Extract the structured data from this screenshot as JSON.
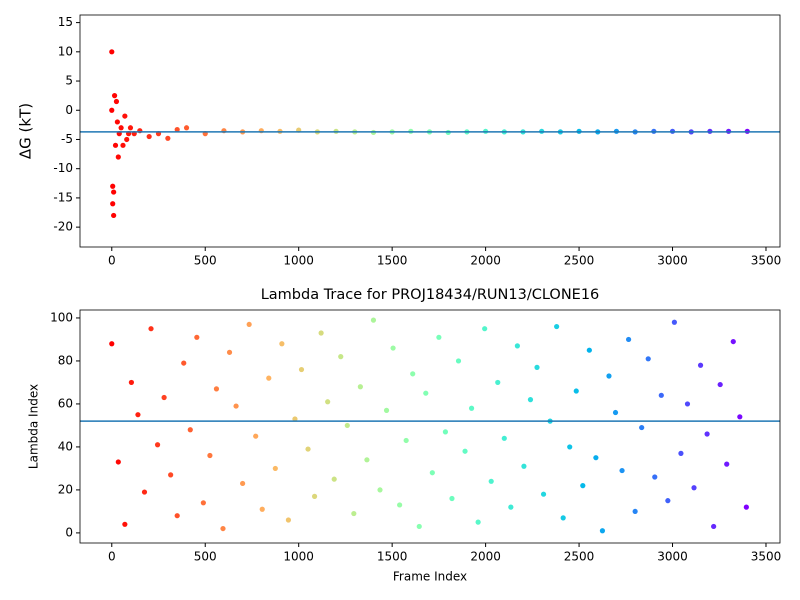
{
  "chart_data": [
    {
      "type": "scatter",
      "ylabel": "ΔG (kT)",
      "colormap": "rainbow_r",
      "x": [
        0,
        0,
        5,
        5,
        10,
        10,
        15,
        20,
        25,
        30,
        35,
        40,
        50,
        60,
        70,
        80,
        90,
        100,
        120,
        150,
        200,
        250,
        300,
        350,
        400,
        500,
        600,
        700,
        800,
        900,
        1000,
        1100,
        1200,
        1300,
        1400,
        1500,
        1600,
        1700,
        1800,
        1900,
        2000,
        2100,
        2200,
        2300,
        2400,
        2500,
        2600,
        2700,
        2800,
        2900,
        3000,
        3100,
        3200,
        3300,
        3400
      ],
      "y": [
        10,
        0,
        -16,
        -13,
        -18,
        -14,
        2.5,
        -6,
        1.5,
        -2,
        -8,
        -4,
        -3,
        -6,
        -1,
        -5,
        -4,
        -3,
        -4,
        -3.5,
        -4.5,
        -4,
        -4.8,
        -3.3,
        -3,
        -4,
        -3.5,
        -3.7,
        -3.5,
        -3.6,
        -3.4,
        -3.7,
        -3.6,
        -3.7,
        -3.8,
        -3.7,
        -3.6,
        -3.7,
        -3.8,
        -3.7,
        -3.6,
        -3.7,
        -3.7,
        -3.6,
        -3.7,
        -3.6,
        -3.7,
        -3.6,
        -3.7,
        -3.6,
        -3.6,
        -3.7,
        -3.6,
        -3.6,
        -3.6
      ],
      "hline": -3.7,
      "hline_color": "#1f77b4",
      "xlim": [
        -170,
        3575
      ],
      "ylim": [
        -23.4,
        16.3
      ],
      "xticks": [
        0,
        500,
        1000,
        1500,
        2000,
        2500,
        3000,
        3500
      ],
      "yticks": [
        -20,
        -15,
        -10,
        -5,
        0,
        5,
        10,
        15
      ]
    },
    {
      "type": "scatter",
      "title": "Lambda Trace for PROJ18434/RUN13/CLONE16",
      "xlabel": "Frame Index",
      "ylabel": "Lambda Index",
      "colormap": "rainbow_r",
      "x": [
        0,
        35,
        70,
        105,
        140,
        175,
        210,
        245,
        280,
        315,
        350,
        385,
        420,
        455,
        490,
        525,
        560,
        595,
        630,
        665,
        700,
        735,
        770,
        805,
        840,
        875,
        910,
        945,
        980,
        1015,
        1050,
        1085,
        1120,
        1155,
        1190,
        1225,
        1260,
        1295,
        1330,
        1365,
        1400,
        1435,
        1470,
        1505,
        1540,
        1575,
        1610,
        1645,
        1680,
        1715,
        1750,
        1785,
        1820,
        1855,
        1890,
        1925,
        1960,
        1995,
        2030,
        2065,
        2100,
        2135,
        2170,
        2205,
        2240,
        2275,
        2310,
        2345,
        2380,
        2415,
        2450,
        2485,
        2520,
        2555,
        2590,
        2625,
        2660,
        2695,
        2730,
        2765,
        2800,
        2835,
        2870,
        2905,
        2940,
        2975,
        3010,
        3045,
        3080,
        3115,
        3150,
        3185,
        3220,
        3255,
        3290,
        3325,
        3360,
        3395
      ],
      "y": [
        88,
        33,
        4,
        70,
        55,
        19,
        95,
        41,
        63,
        27,
        8,
        79,
        48,
        91,
        14,
        36,
        67,
        2,
        84,
        59,
        23,
        97,
        45,
        11,
        72,
        30,
        88,
        6,
        53,
        76,
        39,
        17,
        93,
        61,
        25,
        82,
        50,
        9,
        68,
        34,
        99,
        20,
        57,
        86,
        13,
        43,
        74,
        3,
        65,
        28,
        91,
        47,
        16,
        80,
        38,
        58,
        5,
        95,
        24,
        70,
        44,
        12,
        87,
        31,
        62,
        77,
        18,
        52,
        96,
        7,
        40,
        66,
        22,
        85,
        35,
        1,
        73,
        56,
        29,
        90,
        10,
        49,
        81,
        26,
        64,
        15,
        98,
        37,
        60,
        21,
        78,
        46,
        3,
        69,
        32,
        89,
        54,
        12
      ],
      "hline": 52,
      "hline_color": "#1f77b4",
      "xlim": [
        -170,
        3575
      ],
      "ylim": [
        -4.7,
        103.7
      ],
      "xticks": [
        0,
        500,
        1000,
        1500,
        2000,
        2500,
        3000,
        3500
      ],
      "yticks": [
        0,
        20,
        40,
        60,
        80,
        100
      ]
    }
  ]
}
